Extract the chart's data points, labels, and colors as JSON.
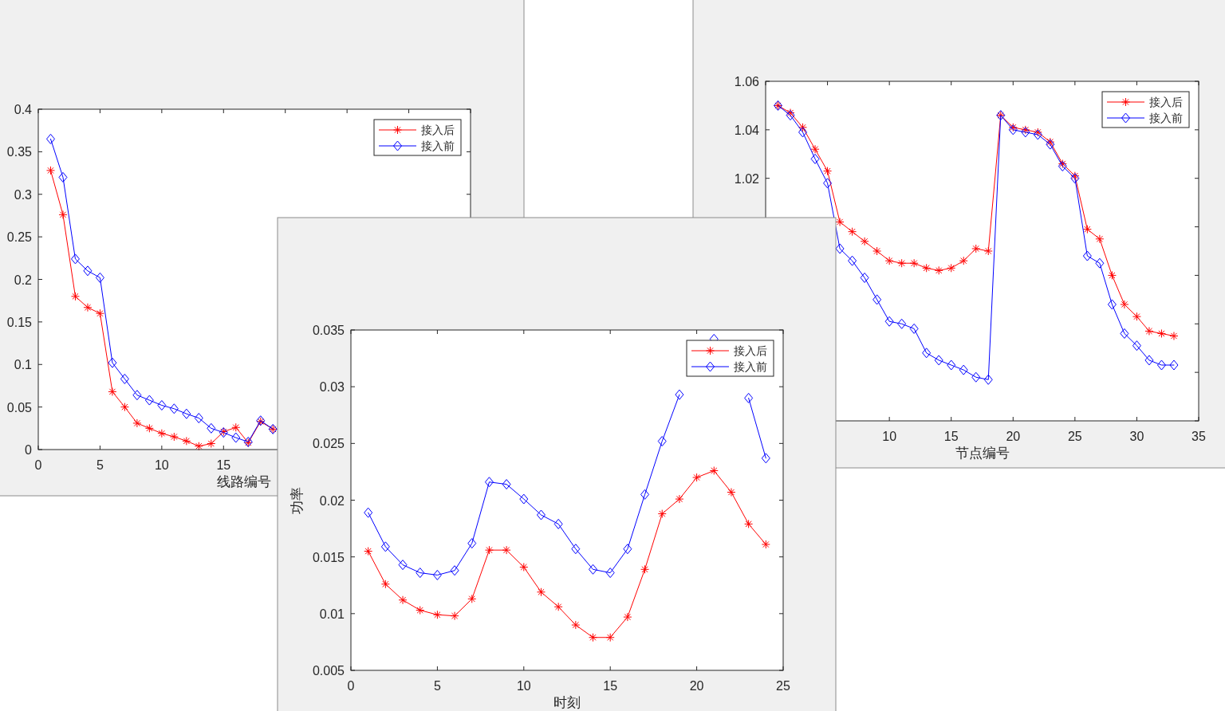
{
  "chart_data": [
    {
      "type": "line",
      "xlabel": "线路编号",
      "x": [
        1,
        2,
        3,
        4,
        5,
        6,
        7,
        8,
        9,
        10,
        11,
        12,
        13,
        14,
        15,
        16,
        17,
        18,
        19
      ],
      "series": [
        {
          "name": "接入后",
          "color": "#ff0000",
          "marker": "cross",
          "values": [
            0.328,
            0.276,
            0.18,
            0.167,
            0.16,
            0.068,
            0.05,
            0.031,
            0.025,
            0.019,
            0.015,
            0.01,
            0.004,
            0.007,
            0.021,
            0.026,
            0.008,
            0.033,
            0.024
          ]
        },
        {
          "name": "接入前",
          "color": "#0000ff",
          "marker": "diamond",
          "values": [
            0.365,
            0.32,
            0.224,
            0.21,
            0.202,
            0.102,
            0.083,
            0.064,
            0.058,
            0.052,
            0.048,
            0.042,
            0.037,
            0.025,
            0.02,
            0.014,
            0.009,
            0.034,
            0.024
          ]
        }
      ],
      "xlim": [
        0,
        35
      ],
      "ylim": [
        0,
        0.4
      ],
      "xticks": [
        0,
        5,
        10,
        15,
        {
          "value": 20,
          "label": null
        },
        {
          "value": 25,
          "label": null
        },
        {
          "value": 30,
          "label": null
        },
        {
          "value": 35,
          "label": null
        }
      ],
      "yticks": [
        0,
        0.05,
        0.1,
        0.15,
        0.2,
        0.25,
        0.3,
        0.35,
        0.4
      ],
      "legend": "top right",
      "grid": false,
      "line_style": "solid"
    },
    {
      "type": "line",
      "xlabel": "节点编号",
      "x": [
        1,
        2,
        3,
        4,
        5,
        6,
        7,
        8,
        9,
        10,
        11,
        12,
        13,
        14,
        15,
        16,
        17,
        18,
        19,
        20,
        21,
        22,
        23,
        24,
        25,
        26,
        27,
        28,
        29,
        30,
        31,
        32,
        33
      ],
      "series": [
        {
          "name": "接入后",
          "color": "#ff0000",
          "marker": "cross",
          "values": [
            1.05,
            1.047,
            1.041,
            1.032,
            1.023,
            1.002,
            0.998,
            0.994,
            0.99,
            0.986,
            0.985,
            0.985,
            0.983,
            0.982,
            0.983,
            0.986,
            0.991,
            0.99,
            1.046,
            1.041,
            1.04,
            1.039,
            1.035,
            1.026,
            1.021,
            0.999,
            0.995,
            0.98,
            0.968,
            0.963,
            0.957,
            0.956,
            0.955
          ]
        },
        {
          "name": "接入前",
          "color": "#0000ff",
          "marker": "diamond",
          "values": [
            1.05,
            1.046,
            1.039,
            1.028,
            1.018,
            0.991,
            0.986,
            0.979,
            0.97,
            0.961,
            0.96,
            0.958,
            0.948,
            0.945,
            0.943,
            0.941,
            0.938,
            0.937,
            1.046,
            1.04,
            1.039,
            1.038,
            1.034,
            1.025,
            1.02,
            0.988,
            0.985,
            0.968,
            0.956,
            0.951,
            0.945,
            0.943,
            0.943
          ]
        }
      ],
      "xlim": [
        0,
        35
      ],
      "ylim": [
        0.92,
        1.06
      ],
      "xticks": [
        {
          "value": 0,
          "label": null
        },
        {
          "value": 5,
          "label": null
        },
        10,
        15,
        20,
        25,
        30,
        35
      ],
      "yticks": [
        {
          "value": 0.92,
          "label": null
        },
        {
          "value": 0.94,
          "label": null
        },
        {
          "value": 0.96,
          "label": null
        },
        {
          "value": 0.98,
          "label": null
        },
        {
          "value": 1.0,
          "label": null
        },
        1.02,
        1.04,
        1.06
      ],
      "legend": "top right",
      "grid": false,
      "line_style": "solid"
    },
    {
      "type": "line",
      "xlabel": "时刻",
      "ylabel": "功率",
      "x": [
        1,
        2,
        3,
        4,
        5,
        6,
        7,
        8,
        9,
        10,
        11,
        12,
        13,
        14,
        15,
        16,
        17,
        18,
        19,
        20,
        21,
        22,
        23,
        24
      ],
      "series": [
        {
          "name": "接入后",
          "color": "#ff0000",
          "marker": "cross",
          "values": [
            0.0155,
            0.0126,
            0.0112,
            0.0103,
            0.0099,
            0.0098,
            0.0113,
            0.0156,
            0.0156,
            0.0141,
            0.0119,
            0.0106,
            0.009,
            0.0079,
            0.0079,
            0.0097,
            0.0139,
            0.0188,
            0.0201,
            0.022,
            0.0226,
            0.0207,
            0.0179,
            0.0161
          ]
        },
        {
          "name": "接入前",
          "color": "#0000ff",
          "marker": "diamond",
          "values": [
            0.0189,
            0.0159,
            0.0143,
            0.0136,
            0.0134,
            0.0138,
            0.0162,
            0.0216,
            0.0214,
            0.0201,
            0.0187,
            0.0179,
            0.0157,
            0.0139,
            0.0136,
            0.0157,
            0.0205,
            0.0252,
            0.0293,
            null,
            0.0342,
            null,
            0.029,
            0.0237
          ]
        }
      ],
      "xlim": [
        0,
        25
      ],
      "ylim": [
        0.005,
        0.035
      ],
      "xticks": [
        0,
        5,
        10,
        15,
        20,
        25
      ],
      "yticks": [
        0.005,
        0.01,
        0.015,
        0.02,
        0.025,
        0.03,
        0.035
      ],
      "legend": "top right",
      "grid": false,
      "line_style": "solid"
    }
  ]
}
